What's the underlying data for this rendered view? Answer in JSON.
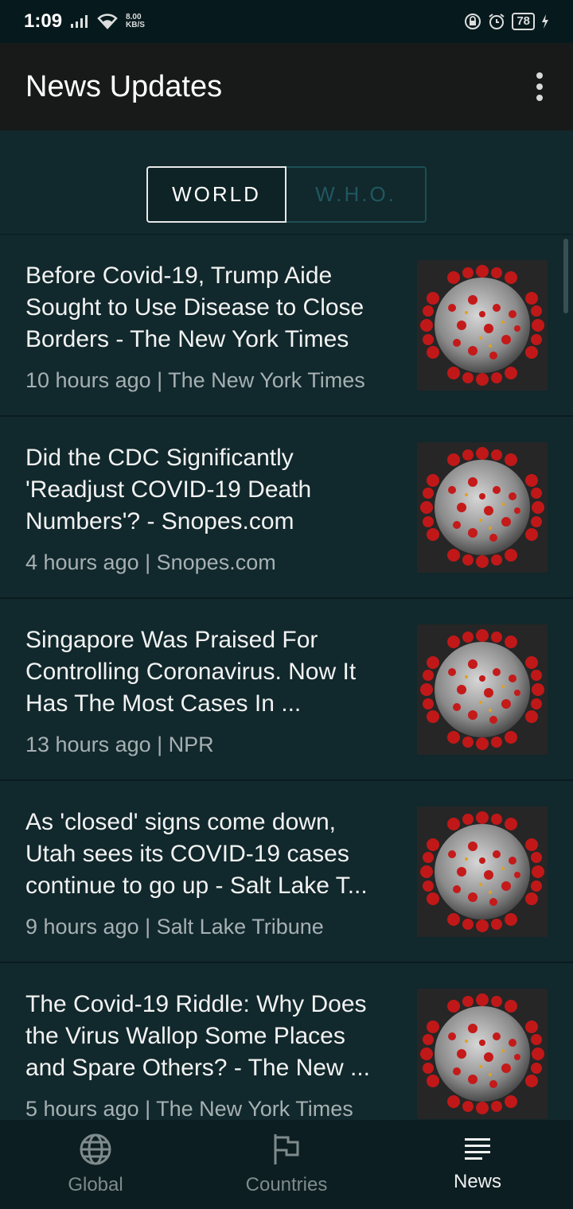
{
  "statusbar": {
    "time": "1:09",
    "speed_value": "8.00",
    "speed_unit": "KB/S",
    "battery": "78"
  },
  "appbar": {
    "title": "News Updates",
    "icons": [
      "more-vert-icon"
    ]
  },
  "tabs": [
    {
      "label": "WORLD",
      "selected": true
    },
    {
      "label": "W.H.O.",
      "selected": false
    }
  ],
  "news": [
    {
      "title": "Before Covid-19, Trump Aide Sought to Use Disease to Close Borders - The New York Times",
      "meta": "10 hours ago | The New York Times"
    },
    {
      "title": "Did the CDC Significantly 'Readjust COVID-19 Death Numbers'? - Snopes.com",
      "meta": "4 hours ago | Snopes.com"
    },
    {
      "title": "Singapore Was Praised For Controlling Coronavirus. Now It Has The Most Cases In ...",
      "meta": "13 hours ago | NPR"
    },
    {
      "title": "As 'closed' signs come down, Utah sees its COVID-19 cases continue to go up - Salt Lake T...",
      "meta": "9 hours ago | Salt Lake Tribune"
    },
    {
      "title": "The Covid-19 Riddle: Why Does the Virus Wallop Some Places and Spare Others? - The New ...",
      "meta": "5 hours ago | The New York Times"
    }
  ],
  "bottom_nav": [
    {
      "label": "Global",
      "icon": "globe-icon",
      "active": false
    },
    {
      "label": "Countries",
      "icon": "flag-icon",
      "active": false
    },
    {
      "label": "News",
      "icon": "list-icon",
      "active": true
    }
  ],
  "colors": {
    "background": "#11282c",
    "appbar": "#181a1a",
    "accent_inactive": "#1f5860"
  }
}
